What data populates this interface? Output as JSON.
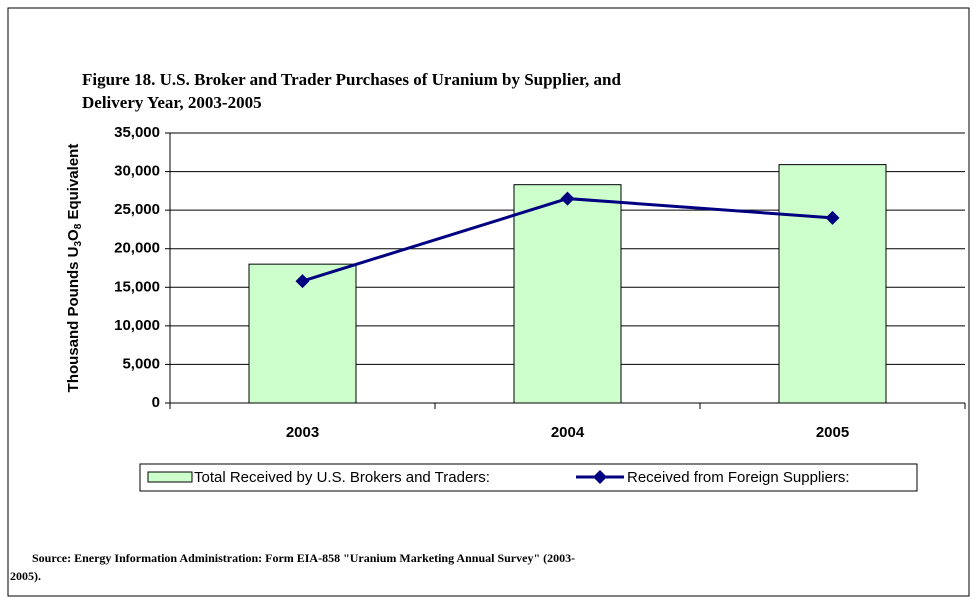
{
  "chart_data": {
    "type": "bar_line",
    "title": [
      "Figure 18. U.S. Broker and Trader Purchases of Uranium by Supplier, and",
      "Delivery Year, 2003-2005"
    ],
    "ylabel": "Thousand Pounds U3O8 Equivalent",
    "categories": [
      "2003",
      "2004",
      "2005"
    ],
    "series": [
      {
        "name": "Total Received by U.S. Brokers and Traders:",
        "type": "bar",
        "color": "#ccffcc",
        "values": [
          18000,
          28300,
          30900
        ]
      },
      {
        "name": "Received from Foreign Suppliers:",
        "type": "line",
        "color": "#000080",
        "values": [
          15800,
          26500,
          24000
        ]
      }
    ],
    "ylim": [
      0,
      35000
    ],
    "yticks": [
      0,
      {
        "value": 5000,
        "label": "5,000"
      },
      {
        "value": 10000,
        "label": "10,000"
      },
      {
        "value": 15000,
        "label": "15,000"
      },
      {
        "value": 20000,
        "label": "20,000"
      },
      {
        "value": 25000,
        "label": "25,000"
      },
      {
        "value": 30000,
        "label": "30,000"
      },
      {
        "value": 35000,
        "label": "35,000"
      }
    ],
    "grid": true,
    "legend": "bottom",
    "source": [
      "Source: Energy Information Administration: Form EIA-858 \"Uranium Marketing Annual Survey\" (2003-",
      "2005)."
    ]
  }
}
